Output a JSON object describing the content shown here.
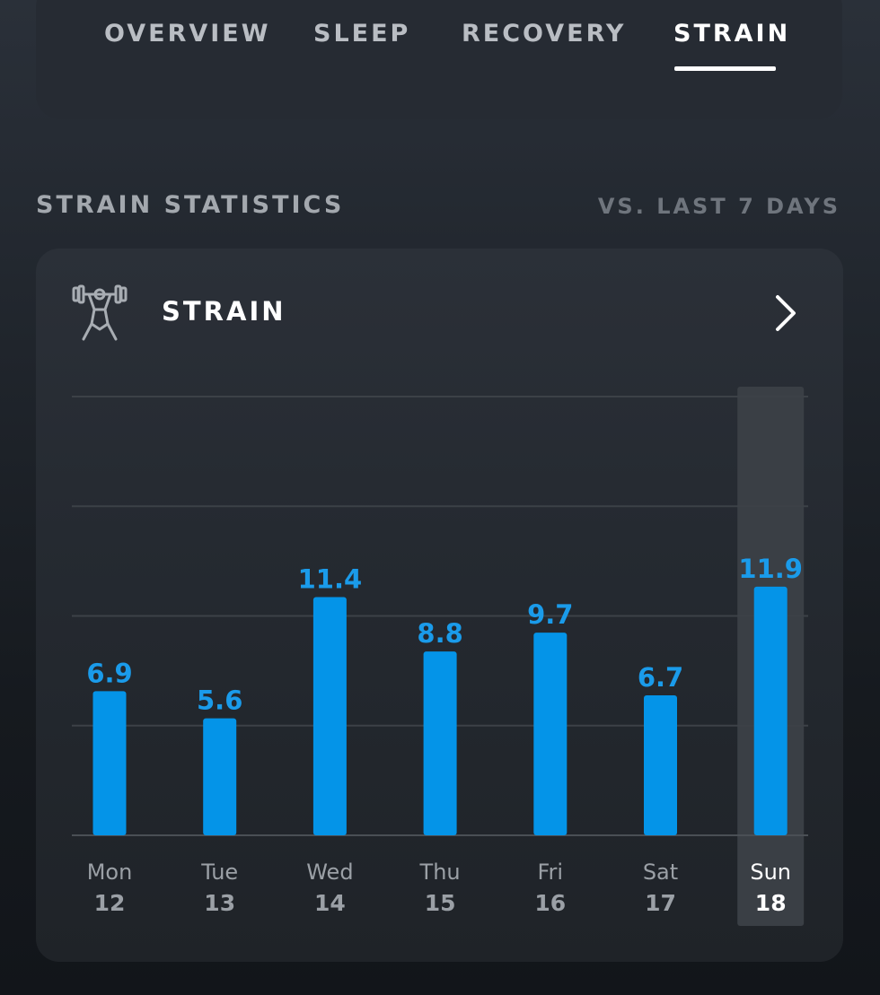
{
  "tabs": [
    {
      "label": "OVERVIEW",
      "active": false
    },
    {
      "label": "SLEEP",
      "active": false
    },
    {
      "label": "RECOVERY",
      "active": false
    },
    {
      "label": "STRAIN",
      "active": true
    }
  ],
  "section": {
    "title": "STRAIN STATISTICS",
    "compare": "VS. LAST 7 DAYS"
  },
  "card": {
    "title": "STRAIN",
    "icon": "weightlifter-icon",
    "nav_icon": "chevron-right-icon"
  },
  "colors": {
    "bar": "#0494e8",
    "value_label": "#1a9bea",
    "selected_highlight": "#3a3f45"
  },
  "chart_data": {
    "type": "bar",
    "categories": [
      "Mon",
      "Tue",
      "Wed",
      "Thu",
      "Fri",
      "Sat",
      "Sun"
    ],
    "dates": [
      "12",
      "13",
      "14",
      "15",
      "16",
      "17",
      "18"
    ],
    "values": [
      6.9,
      5.6,
      11.4,
      8.8,
      9.7,
      6.7,
      11.9
    ],
    "selected_index": 6,
    "ylim": [
      0,
      21
    ],
    "gridlines": [
      0,
      5.25,
      10.5,
      15.75,
      21
    ],
    "grid": true
  }
}
